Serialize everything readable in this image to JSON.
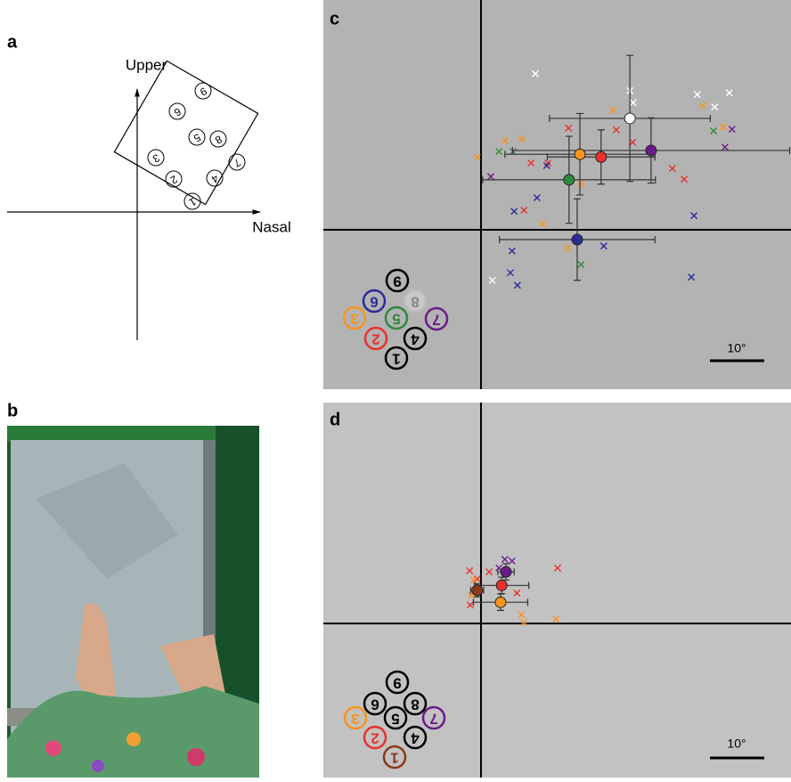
{
  "panels": {
    "a": {
      "label": "a",
      "upper": "Upper",
      "nasal": "Nasal"
    },
    "b": {
      "label": "b"
    },
    "c": {
      "label": "c",
      "scale_label": "10°",
      "means": [
        {
          "color": "#ffffff",
          "x": 27.4,
          "y": 20.5,
          "xerr": 14.8,
          "yerr": 11.6
        },
        {
          "color": "#f7941d",
          "x": 18.2,
          "y": 13.9,
          "xerr": 13.8,
          "yerr": 7.5
        },
        {
          "color": "#e8322b",
          "x": 22.1,
          "y": 13.4,
          "xerr": 9.9,
          "yerr": 5
        },
        {
          "color": "#6a1b8a",
          "x": 31.3,
          "y": 14.6,
          "xerr": 25.5,
          "yerr": 6
        },
        {
          "color": "#2e8b3a",
          "x": 16.2,
          "y": 9.2,
          "xerr": 15.9,
          "yerr": 8
        },
        {
          "color": "#2b2b9a",
          "x": 17.7,
          "y": -1.8,
          "xerr": 14.3,
          "yerr": 7.5
        }
      ],
      "crosses": [
        {
          "color": "#ffffff",
          "x": [
            10,
            27.4,
            39.8,
            45.7,
            43,
            2.1,
            28
          ],
          "y": [
            28.7,
            25.6,
            24.9,
            25.2,
            22.6,
            -9.3,
            23.4
          ]
        },
        {
          "color": "#f7941d",
          "x": [
            24.3,
            40.8,
            44.6,
            4.4,
            7.5,
            -0.7,
            11.3,
            15.9,
            18.4
          ],
          "y": [
            22,
            22.8,
            18.9,
            16.4,
            16.7,
            13.4,
            1.1,
            -3.4,
            8.4
          ]
        },
        {
          "color": "#e8322b",
          "x": [
            16.1,
            24.9,
            27.9,
            9.2,
            35.2,
            37.4,
            7.9,
            12.3
          ],
          "y": [
            18.7,
            18.4,
            16.1,
            12.3,
            11.3,
            9.3,
            3.6,
            12.3
          ]
        },
        {
          "color": "#2e8b3a",
          "x": [
            3.3,
            5.9,
            42.8,
            18.4
          ],
          "y": [
            14.4,
            14.4,
            18.2,
            -6.4
          ]
        },
        {
          "color": "#6a1b8a",
          "x": [
            1.8,
            46.2,
            44.9
          ],
          "y": [
            9.8,
            18.5,
            15.2
          ]
        },
        {
          "color": "#2b2b9a",
          "x": [
            10.3,
            6.1,
            12.1,
            5.7,
            5.4,
            6.7,
            22.6,
            39.2,
            38.7
          ],
          "y": [
            5.9,
            3.4,
            11.8,
            -3.9,
            -7.9,
            -10.2,
            -3,
            2.6,
            -8.7
          ]
        }
      ]
    },
    "d": {
      "label": "d",
      "scale_label": "10°",
      "means": [
        {
          "color": "#6a1b8a",
          "x": 4.6,
          "y": 9.5,
          "xerr": 1.5,
          "yerr": 1.5
        },
        {
          "color": "#e8322b",
          "x": 3.8,
          "y": 7.0,
          "xerr": 5,
          "yerr": 1.5
        },
        {
          "color": "#8b3a1a",
          "x": -0.7,
          "y": 6.1,
          "xerr": 1.2,
          "yerr": 1.2
        },
        {
          "color": "#f7941d",
          "x": 3.6,
          "y": 3.9,
          "xerr": 5,
          "yerr": 1.5
        }
      ],
      "crosses": [
        {
          "color": "#e8322b",
          "x": [
            -2.1,
            1.5,
            14.1,
            -2,
            -0.7,
            6.6
          ],
          "y": [
            9.7,
            9.5,
            10.2,
            3.4,
            8.2,
            5.6
          ]
        },
        {
          "color": "#f7941d",
          "x": [
            -1.3,
            7.4,
            13.8,
            7.9,
            -1.8
          ],
          "y": [
            8,
            1.6,
            0.8,
            0.2,
            5.2
          ]
        },
        {
          "color": "#6a1b8a",
          "x": [
            4.4,
            5.7,
            3.3
          ],
          "y": [
            11.8,
            11.5,
            10.2
          ]
        }
      ]
    }
  },
  "keypad_digits": [
    "1",
    "2",
    "3",
    "4",
    "5",
    "6",
    "7",
    "8",
    "9"
  ]
}
